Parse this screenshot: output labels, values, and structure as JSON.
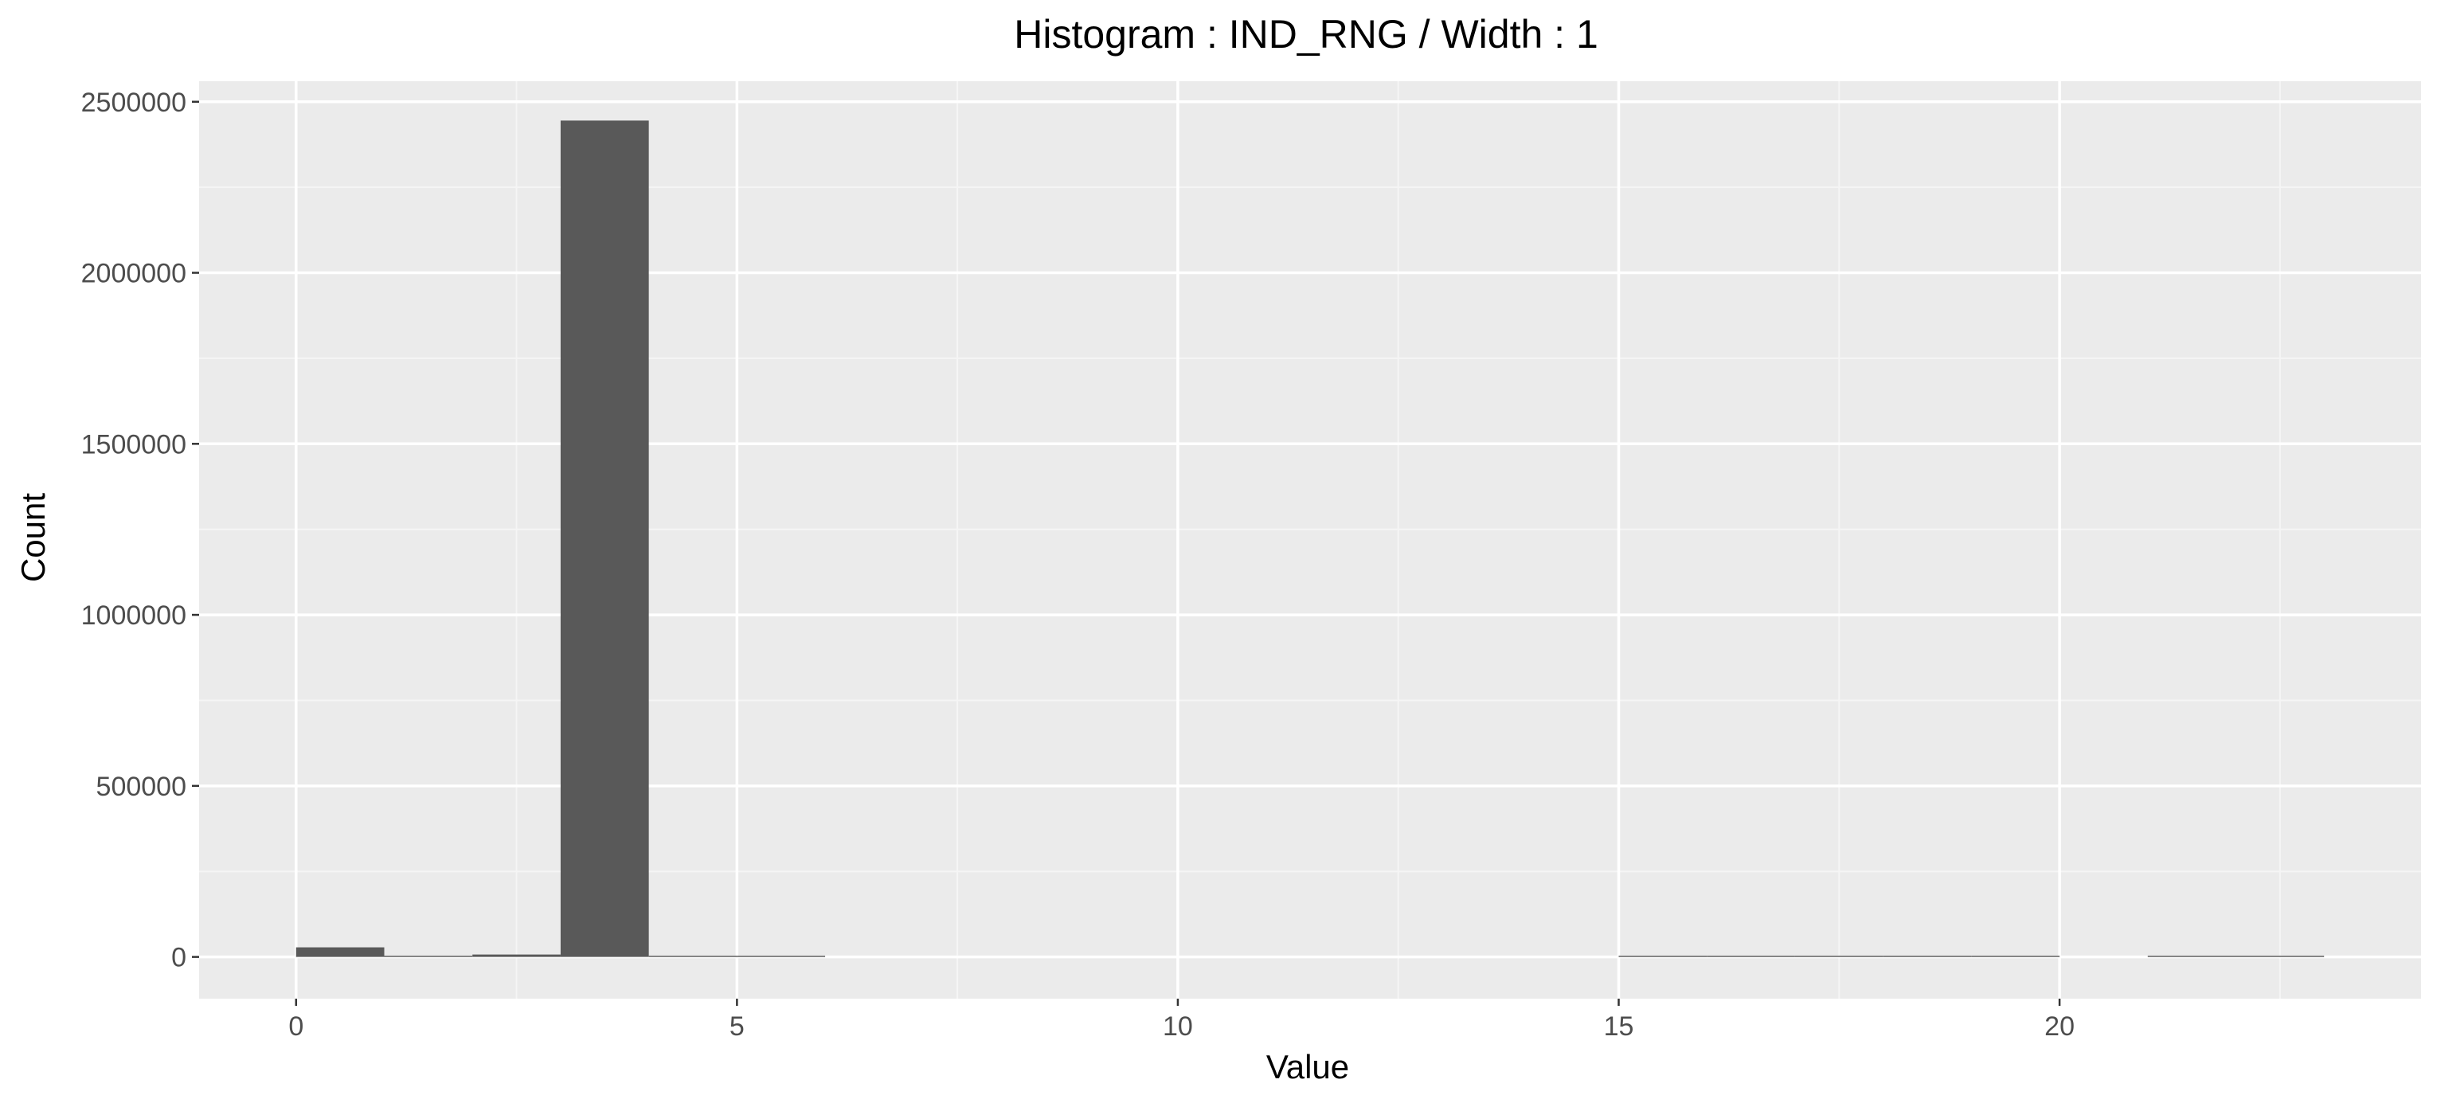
{
  "chart_data": {
    "type": "bar",
    "title": "Histogram : IND_RNG / Width : 1",
    "xlabel": "Value",
    "ylabel": "Count",
    "bin_width": 1,
    "bins": [
      {
        "x0": 0,
        "x1": 1,
        "value": 28000
      },
      {
        "x0": 1,
        "x1": 2,
        "value": 2000
      },
      {
        "x0": 2,
        "x1": 3,
        "value": 7000
      },
      {
        "x0": 3,
        "x1": 4,
        "value": 2445000
      },
      {
        "x0": 4,
        "x1": 5,
        "value": 1500
      },
      {
        "x0": 5,
        "x1": 6,
        "value": 800
      },
      {
        "x0": 15,
        "x1": 16,
        "value": 500
      },
      {
        "x0": 16,
        "x1": 17,
        "value": 500
      },
      {
        "x0": 17,
        "x1": 18,
        "value": 1500
      },
      {
        "x0": 18,
        "x1": 19,
        "value": 3000
      },
      {
        "x0": 19,
        "x1": 20,
        "value": 800
      },
      {
        "x0": 21,
        "x1": 22,
        "value": 1500
      },
      {
        "x0": 22,
        "x1": 23,
        "value": 3000
      }
    ],
    "xlim": [
      -1.1,
      24.1
    ],
    "ylim": [
      -122000,
      2560000
    ],
    "x_ticks": [
      0,
      5,
      10,
      15,
      20
    ],
    "x_tick_labels": [
      "0",
      "5",
      "10",
      "15",
      "20"
    ],
    "y_ticks": [
      0,
      500000,
      1000000,
      1500000,
      2000000,
      2500000
    ],
    "y_tick_labels": [
      "0",
      "500000",
      "1000000",
      "1500000",
      "2000000",
      "2500000"
    ],
    "grid": true,
    "legend": "none",
    "colors": {
      "panel_background": "#ebebeb",
      "grid_major": "#ffffff",
      "grid_minor": "#f5f5f5",
      "bar_fill": "#595959",
      "tick_label": "#4d4d4d",
      "tick_mark": "#333333"
    }
  }
}
